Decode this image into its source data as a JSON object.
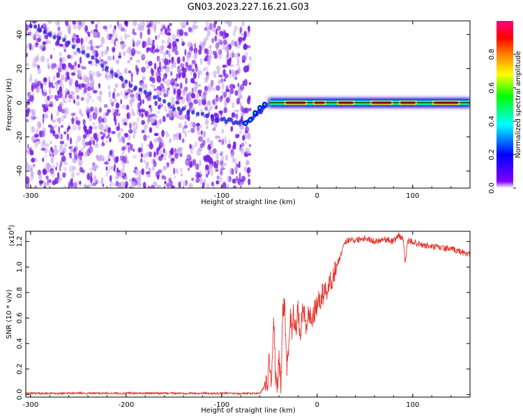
{
  "title": "GN03.2023.227.16.21.G03",
  "chart_data": [
    {
      "type": "heatmap",
      "xlabel": "Height of straight line (km)",
      "ylabel": "Frequency (Hz)",
      "xlim": [
        -305,
        160
      ],
      "ylim": [
        -50,
        48
      ],
      "xticks": [
        -300,
        -200,
        -100,
        0,
        100
      ],
      "xtick_labels": [
        "-300",
        "-200",
        "-100",
        "0",
        "100"
      ],
      "yticks": [
        -40,
        -20,
        0,
        20,
        40
      ],
      "ytick_labels": [
        "-40",
        "-20",
        "0",
        "20",
        "40"
      ],
      "noise_region_x": [
        -305,
        -70
      ],
      "diagonal_trace": [
        [
          -300,
          45
        ],
        [
          -250,
          32
        ],
        [
          -200,
          12
        ],
        [
          -150,
          -3
        ],
        [
          -100,
          -10
        ],
        [
          -75,
          -12
        ],
        [
          -60,
          -5
        ],
        [
          -50,
          0
        ]
      ],
      "signal_line_freq": 0,
      "signal_line_x": [
        -50,
        160
      ],
      "peak_segments_x": [
        [
          -35,
          -10
        ],
        [
          -5,
          10
        ],
        [
          20,
          40
        ],
        [
          55,
          80
        ],
        [
          85,
          105
        ],
        [
          120,
          150
        ]
      ],
      "colorbar": {
        "label": "Normalized spectral amplitude",
        "range": [
          0,
          1
        ],
        "ticks": [
          0.0,
          0.2,
          0.4,
          0.6,
          0.8
        ],
        "tick_labels": [
          "0.0",
          "0.2",
          "0.4",
          "0.6",
          "0.8"
        ],
        "colors": [
          "#ffffff",
          "#8000ff",
          "#0000ff",
          "#00ffff",
          "#00ff00",
          "#ffff00",
          "#ff8000",
          "#ff0000",
          "#ff0080"
        ]
      },
      "colors": {
        "noise": "#7a1fe6",
        "noise_light": "#c7a6f0",
        "trace": "#2b2bd9"
      }
    },
    {
      "type": "line",
      "xlabel": "Height of straight line (km)",
      "ylabel": "SNR (10 * v/v)",
      "multiplier_label": "(x10",
      "multiplier_exp": "4",
      "multiplier_close": ")",
      "xlim": [
        -305,
        160
      ],
      "ylim": [
        -0.02,
        1.28
      ],
      "xticks": [
        -300,
        -200,
        -100,
        0,
        100
      ],
      "xtick_labels": [
        "-300",
        "-200",
        "-100",
        "0",
        "100"
      ],
      "yticks": [
        0.0,
        0.2,
        0.4,
        0.6,
        0.8,
        1.0,
        1.2
      ],
      "ytick_labels": [
        "0.0",
        "0.2",
        "0.4",
        "0.6",
        "0.8",
        "1.0",
        "1.2"
      ],
      "series": [
        {
          "color": "#e8352e",
          "x": [
            -305,
            -250,
            -200,
            -150,
            -100,
            -60,
            -52,
            -50,
            -48,
            -46,
            -45,
            -44,
            -42,
            -40,
            -38,
            -36,
            -34,
            -32,
            -30,
            -28,
            -26,
            -25,
            -22,
            -20,
            -18,
            -16,
            -14,
            -12,
            -10,
            -5,
            0,
            5,
            10,
            15,
            20,
            25,
            30,
            35,
            40,
            50,
            60,
            70,
            80,
            85,
            90,
            92,
            95,
            100,
            110,
            120,
            130,
            140,
            150,
            160
          ],
          "y": [
            0.01,
            0.01,
            0.01,
            0.01,
            0.01,
            0.01,
            0.1,
            0.3,
            0.05,
            0.5,
            0.55,
            0.2,
            0.0,
            0.3,
            0.05,
            0.65,
            0.72,
            0.2,
            0.4,
            0.6,
            0.5,
            0.62,
            0.55,
            0.65,
            0.45,
            0.6,
            0.68,
            0.5,
            0.62,
            0.6,
            0.7,
            0.78,
            0.82,
            0.9,
            1.0,
            1.1,
            1.2,
            1.22,
            1.21,
            1.23,
            1.2,
            1.22,
            1.2,
            1.25,
            1.22,
            1.05,
            1.2,
            1.2,
            1.17,
            1.16,
            1.15,
            1.14,
            1.12,
            1.1
          ]
        }
      ]
    }
  ]
}
